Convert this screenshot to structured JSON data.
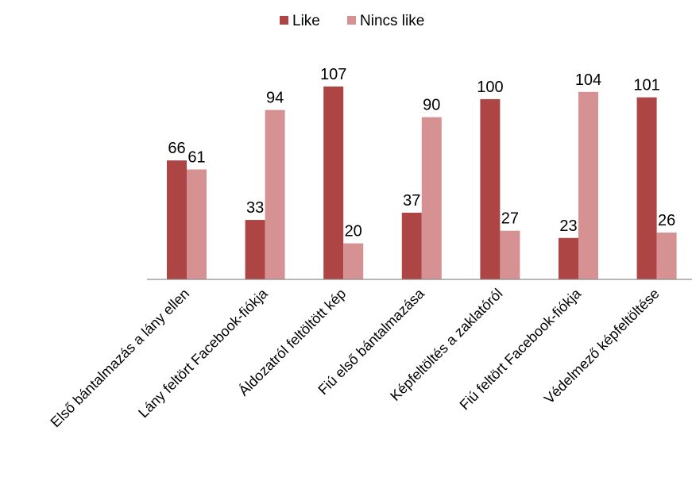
{
  "chart_data": {
    "type": "bar",
    "categories": [
      "Első bántalmazás a lány ellen",
      "Lány feltört Facebook-fiókja",
      "Áldozatról feltöltött kép",
      "Fiú első bántalmazása",
      "Képfeltöltés a zaklatóról",
      "Fiú feltört Facebook-fiókja",
      "Védelmező képfeltöltése"
    ],
    "series": [
      {
        "name": "Like",
        "values": [
          66,
          33,
          107,
          37,
          100,
          23,
          101
        ],
        "color": "#ad4545"
      },
      {
        "name": "Nincs like",
        "values": [
          61,
          94,
          20,
          90,
          27,
          104,
          26
        ],
        "color": "#d69293"
      }
    ],
    "ylim": [
      0,
      120
    ],
    "grid": false,
    "legend_position": "top-center",
    "axis_color": "#8c8c8c"
  }
}
